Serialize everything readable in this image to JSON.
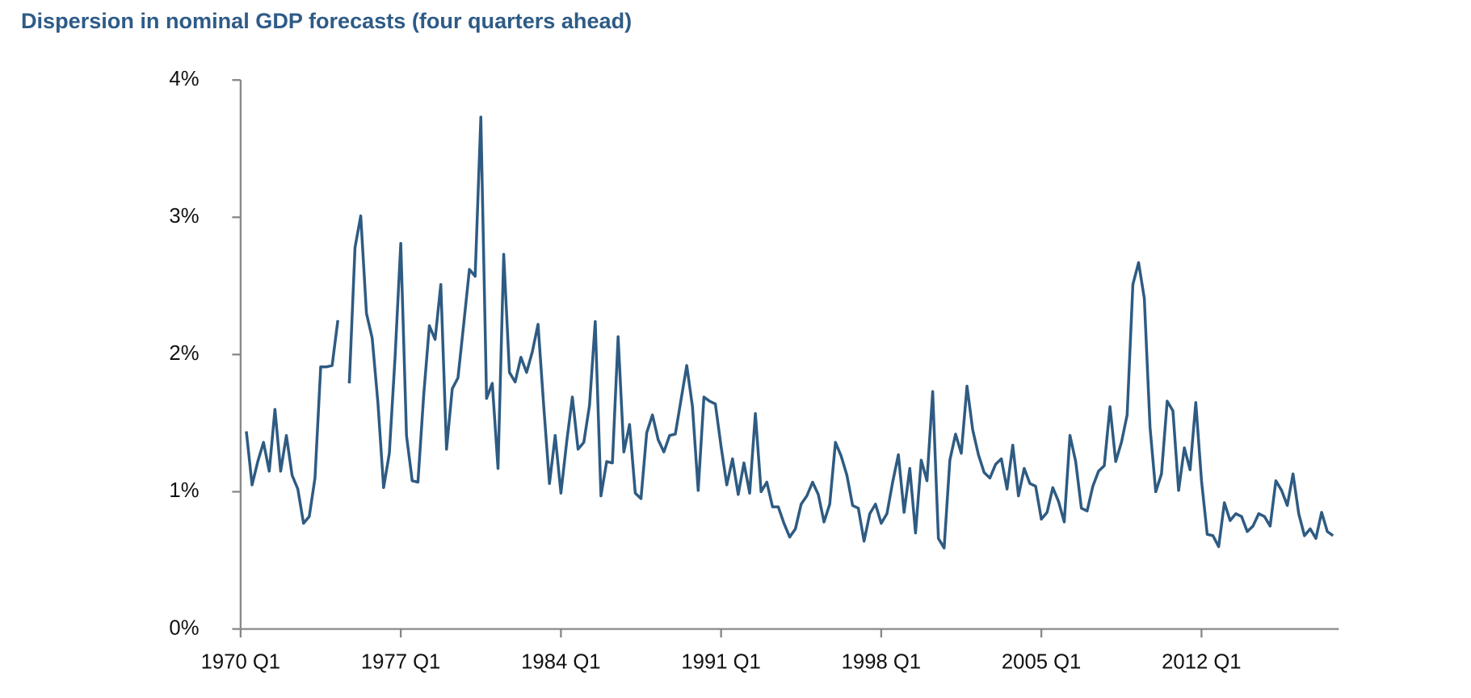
{
  "chart_data": {
    "type": "line",
    "title": "Dispersion in nominal GDP forecasts (four quarters ahead)",
    "categories": [
      "1970 Q1",
      null,
      null,
      null,
      null,
      null,
      null,
      null,
      null,
      null,
      null,
      null,
      null,
      null,
      null,
      null,
      null,
      null,
      null,
      null,
      null,
      null,
      null,
      null,
      null,
      null,
      null,
      null,
      "1977 Q1",
      null,
      null,
      null,
      null,
      null,
      null,
      null,
      null,
      null,
      null,
      null,
      null,
      null,
      null,
      null,
      null,
      null,
      null,
      null,
      null,
      null,
      null,
      null,
      null,
      null,
      null,
      null,
      "1984 Q1",
      null,
      null,
      null,
      null,
      null,
      null,
      null,
      null,
      null,
      null,
      null,
      null,
      null,
      null,
      null,
      null,
      null,
      null,
      null,
      null,
      null,
      null,
      null,
      null,
      null,
      null,
      null,
      "1991 Q1",
      null,
      null,
      null,
      null,
      null,
      null,
      null,
      null,
      null,
      null,
      null,
      null,
      null,
      null,
      null,
      null,
      null,
      null,
      null,
      null,
      null,
      null,
      null,
      null,
      null,
      null,
      null,
      "1998 Q1",
      null,
      null,
      null,
      null,
      null,
      null,
      null,
      null,
      null,
      null,
      null,
      null,
      null,
      null,
      null,
      null,
      null,
      null,
      null,
      null,
      null,
      null,
      null,
      null,
      null,
      null,
      null,
      "2005 Q1",
      null,
      null,
      null,
      null,
      null,
      null,
      null,
      null,
      null,
      null,
      null,
      null,
      null,
      null,
      null,
      null,
      null,
      null,
      null,
      null,
      null,
      null,
      null,
      null,
      null,
      null,
      null,
      "2012 Q1",
      null,
      null,
      null,
      null,
      null,
      null,
      null,
      null,
      null,
      null,
      null,
      null,
      null,
      null,
      null,
      null,
      null,
      null,
      null,
      null,
      null,
      null,
      null
    ],
    "series": [
      {
        "color": "#2e5b82",
        "values": [
          null,
          1.44,
          1.05,
          1.22,
          1.36,
          1.15,
          1.6,
          1.15,
          1.41,
          1.12,
          1.02,
          0.77,
          0.82,
          1.1,
          1.91,
          1.91,
          1.92,
          2.25,
          null,
          1.79,
          2.78,
          3.01,
          2.3,
          2.12,
          1.65,
          1.03,
          1.28,
          1.98,
          2.81,
          1.41,
          1.08,
          1.07,
          1.7,
          2.21,
          2.11,
          2.51,
          1.31,
          1.75,
          1.83,
          2.22,
          2.62,
          2.57,
          3.73,
          1.68,
          1.79,
          1.17,
          2.73,
          1.87,
          1.8,
          1.98,
          1.87,
          2.02,
          2.22,
          1.62,
          1.06,
          1.41,
          0.99,
          1.36,
          1.69,
          1.31,
          1.36,
          1.63,
          2.24,
          0.97,
          1.22,
          1.21,
          2.13,
          1.29,
          1.49,
          0.99,
          0.95,
          1.43,
          1.56,
          1.38,
          1.29,
          1.41,
          1.42,
          1.67,
          1.92,
          1.62,
          1.01,
          1.69,
          1.66,
          1.64,
          1.33,
          1.05,
          1.24,
          0.98,
          1.21,
          0.99,
          1.57,
          1.0,
          1.07,
          0.89,
          0.89,
          0.77,
          0.67,
          0.73,
          0.91,
          0.97,
          1.07,
          0.98,
          0.78,
          0.91,
          1.36,
          1.26,
          1.12,
          0.9,
          0.88,
          0.64,
          0.84,
          0.91,
          0.77,
          0.84,
          1.07,
          1.27,
          0.85,
          1.17,
          0.7,
          1.23,
          1.08,
          1.73,
          0.66,
          0.59,
          1.23,
          1.42,
          1.28,
          1.77,
          1.45,
          1.27,
          1.14,
          1.1,
          1.2,
          1.24,
          1.02,
          1.34,
          0.97,
          1.17,
          1.06,
          1.04,
          0.8,
          0.85,
          1.03,
          0.93,
          0.78,
          1.41,
          1.22,
          0.88,
          0.86,
          1.04,
          1.15,
          1.19,
          1.62,
          1.22,
          1.36,
          1.56,
          2.51,
          2.67,
          2.41,
          1.47,
          1.0,
          1.13,
          1.66,
          1.59,
          1.01,
          1.32,
          1.16,
          1.65,
          1.08,
          0.69,
          0.68,
          0.6,
          0.92,
          0.79,
          0.84,
          0.82,
          0.71,
          0.75,
          0.84,
          0.82,
          0.75,
          1.08,
          1.01,
          0.9,
          1.13,
          0.84,
          0.68,
          0.73,
          0.66,
          0.85,
          0.71,
          0.68
        ]
      }
    ],
    "ylim": [
      0,
      4
    ],
    "yticks": [
      {
        "value": 0,
        "label": "0%"
      },
      {
        "value": 1,
        "label": "1%"
      },
      {
        "value": 2,
        "label": "2%"
      },
      {
        "value": 3,
        "label": "3%"
      },
      {
        "value": 4,
        "label": "4%"
      }
    ],
    "grid": false
  }
}
